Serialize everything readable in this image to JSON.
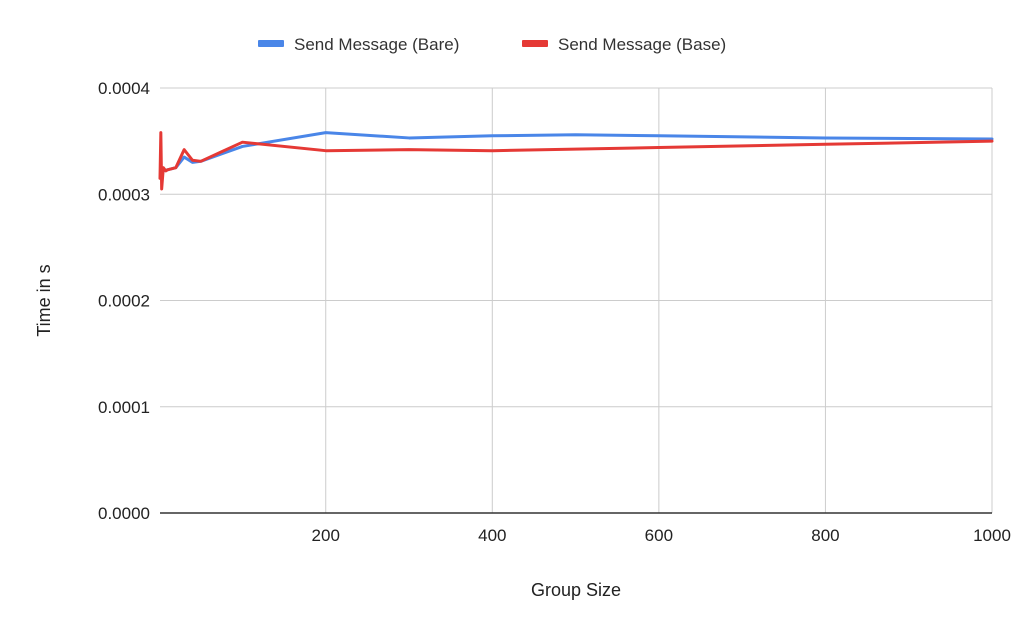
{
  "chart_data": {
    "type": "line",
    "xlabel": "Group Size",
    "ylabel": "Time in s",
    "xlim": [
      1,
      1000
    ],
    "ylim": [
      0,
      0.0004
    ],
    "x_ticks": [
      200,
      400,
      600,
      800,
      1000
    ],
    "y_ticks": [
      "0.0000",
      "0.0001",
      "0.0002",
      "0.0003",
      "0.0004"
    ],
    "grid": true,
    "legend_position": "top-center",
    "series": [
      {
        "name": "Send Message (Bare)",
        "color": "#4a86e8",
        "points": [
          [
            2,
            0.000315
          ],
          [
            5,
            0.000322
          ],
          [
            10,
            0.000323
          ],
          [
            20,
            0.000325
          ],
          [
            30,
            0.000335
          ],
          [
            40,
            0.00033
          ],
          [
            50,
            0.000331
          ],
          [
            75,
            0.000338
          ],
          [
            100,
            0.000345
          ],
          [
            200,
            0.000358
          ],
          [
            300,
            0.000353
          ],
          [
            400,
            0.000355
          ],
          [
            500,
            0.000356
          ],
          [
            600,
            0.000355
          ],
          [
            800,
            0.000353
          ],
          [
            1000,
            0.000352
          ]
        ]
      },
      {
        "name": "Send Message (Base)",
        "color": "#e53935",
        "points": [
          [
            1,
            0.000315
          ],
          [
            2,
            0.000358
          ],
          [
            3,
            0.000305
          ],
          [
            5,
            0.000325
          ],
          [
            8,
            0.000322
          ],
          [
            10,
            0.000323
          ],
          [
            20,
            0.000325
          ],
          [
            30,
            0.000342
          ],
          [
            40,
            0.000332
          ],
          [
            50,
            0.000331
          ],
          [
            75,
            0.00034
          ],
          [
            100,
            0.000349
          ],
          [
            200,
            0.000341
          ],
          [
            300,
            0.000342
          ],
          [
            400,
            0.000341
          ],
          [
            600,
            0.000344
          ],
          [
            800,
            0.000347
          ],
          [
            1000,
            0.00035
          ]
        ]
      }
    ]
  }
}
